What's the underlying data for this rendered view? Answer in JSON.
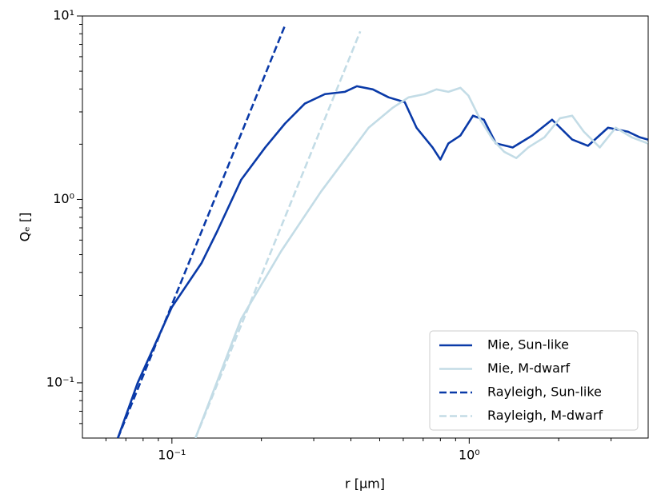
{
  "chart_data": {
    "type": "line",
    "xlabel": "r [μm]",
    "ylabel": "Qₑ []",
    "xscale": "log",
    "yscale": "log",
    "xlim": [
      0.05,
      4
    ],
    "ylim": [
      0.05,
      10
    ],
    "xticks": [
      {
        "value": 0.1,
        "label": "10⁻¹"
      },
      {
        "value": 1,
        "label": "10⁰"
      }
    ],
    "yticks": [
      {
        "value": 0.1,
        "label": "10⁻¹"
      },
      {
        "value": 1,
        "label": "10⁰"
      },
      {
        "value": 10,
        "label": "10¹"
      }
    ],
    "xminorticks": [
      0.06,
      0.07,
      0.08,
      0.09,
      0.2,
      0.3,
      0.4,
      0.5,
      0.6,
      0.7,
      0.8,
      0.9,
      2,
      3
    ],
    "yminorticks": [
      0.06,
      0.07,
      0.08,
      0.09,
      0.2,
      0.3,
      0.4,
      0.5,
      0.6,
      0.7,
      0.8,
      0.9,
      2,
      3,
      4,
      5,
      6,
      7,
      8,
      9
    ],
    "legend": "lower right",
    "series": [
      {
        "name": "Mie, Sun-like",
        "color": "#0a3aa8",
        "dashed": false,
        "x": [
          0.0658,
          0.0767,
          0.1,
          0.1257,
          0.142,
          0.171,
          0.206,
          0.24,
          0.28,
          0.327,
          0.382,
          0.419,
          0.474,
          0.536,
          0.607,
          0.665,
          0.753,
          0.8,
          0.851,
          0.934,
          1.03,
          1.12,
          1.23,
          1.4,
          1.63,
          1.9,
          2.22,
          2.51,
          2.93,
          3.42,
          3.75,
          3.99
        ],
        "values": [
          0.05,
          0.1,
          0.259,
          0.449,
          0.67,
          1.28,
          1.92,
          2.59,
          3.33,
          3.75,
          3.86,
          4.14,
          3.98,
          3.6,
          3.39,
          2.46,
          1.92,
          1.65,
          2.02,
          2.23,
          2.86,
          2.72,
          2.02,
          1.92,
          2.23,
          2.72,
          2.12,
          1.96,
          2.46,
          2.34,
          2.18,
          2.12
        ]
      },
      {
        "name": "Mie, M-dwarf",
        "color": "#c3dce6",
        "dashed": false,
        "x": [
          0.12,
          0.171,
          0.233,
          0.317,
          0.382,
          0.459,
          0.553,
          0.625,
          0.708,
          0.776,
          0.851,
          0.934,
          0.994,
          1.09,
          1.2,
          1.31,
          1.44,
          1.58,
          1.79,
          2.02,
          2.22,
          2.43,
          2.75,
          3.11,
          3.52,
          3.99
        ],
        "values": [
          0.05,
          0.223,
          0.522,
          1.1,
          1.65,
          2.46,
          3.16,
          3.6,
          3.75,
          3.98,
          3.86,
          4.06,
          3.68,
          2.72,
          2.12,
          1.82,
          1.68,
          1.92,
          2.18,
          2.77,
          2.86,
          2.34,
          1.92,
          2.46,
          2.18,
          2.02
        ]
      },
      {
        "name": "Rayleigh, Sun-like",
        "color": "#0a3aa8",
        "dashed": true,
        "x": [
          0.0658,
          0.1,
          0.15,
          0.2,
          0.24
        ],
        "values": [
          0.05,
          0.267,
          1.35,
          4.27,
          8.87
        ]
      },
      {
        "name": "Rayleigh, M-dwarf",
        "color": "#c3dce6",
        "dashed": true,
        "x": [
          0.12,
          0.2,
          0.3,
          0.4,
          0.43
        ],
        "values": [
          0.05,
          0.386,
          1.95,
          6.17,
          8.24
        ]
      }
    ]
  }
}
